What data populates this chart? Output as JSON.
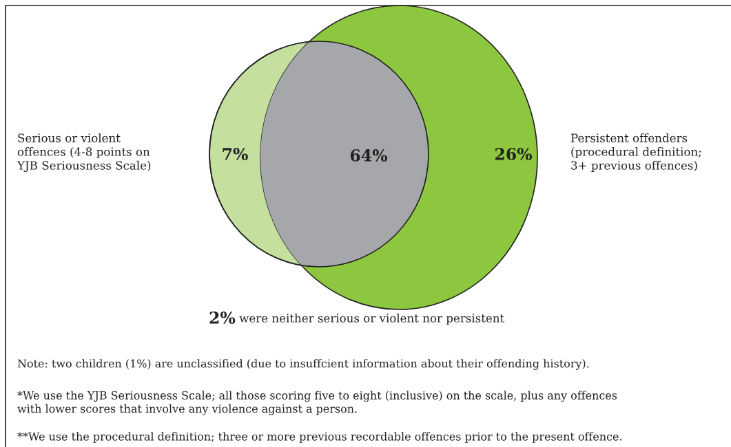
{
  "chart_data": {
    "type": "other",
    "categories": [
      null,
      null,
      null,
      "were neither serious or violent nor persistent"
    ],
    "values": [
      7,
      64,
      26,
      2
    ],
    "value_labels": [
      "7%",
      "64%",
      "26%",
      "2%"
    ],
    "colors": [
      "#c5df9f",
      "#a6a7aa",
      "#8dc63f",
      "#ffffff"
    ],
    "annotations": [
      "Serious or violent\noffences (4-8 points on\nYJB Seriousness Scale)",
      "Persistent offenders\n(procedural definition;\n3+ previous offences)",
      "Note: two children (1%) are unclassified (due to insuffcient information about their offending history).",
      "*We use the YJB Seriousness Scale; all those scoring five to eight (inclusive) on the scale, plus any offences\nwith lower scores that involve any violence against a person.",
      "**We use the procedural definition; three or more previous recordable offences prior to the present offence."
    ]
  }
}
